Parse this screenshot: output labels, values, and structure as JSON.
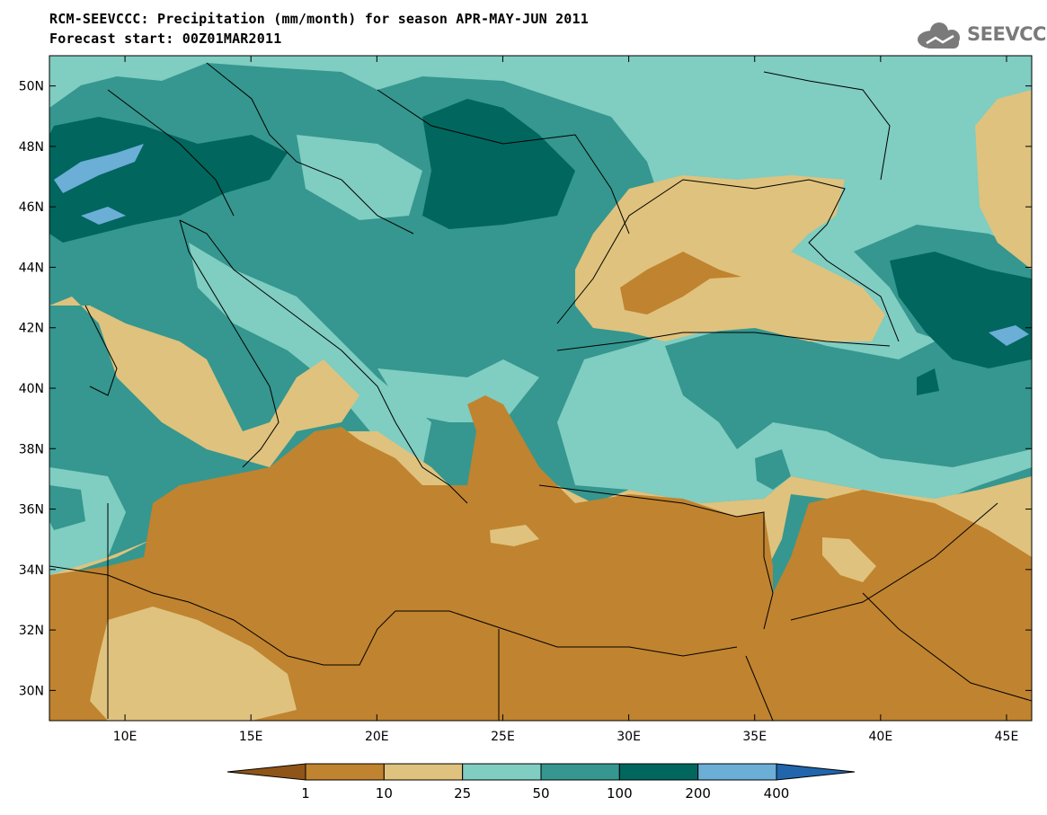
{
  "header": {
    "title_line1": "RCM-SEEVCCC: Precipitation (mm/month) for season APR-MAY-JUN 2011",
    "title_line2": "Forecast start: 00Z01MAR2011",
    "logo_text": "SEEVCCC"
  },
  "map": {
    "lon_range": [
      7,
      46
    ],
    "lat_range": [
      29,
      51
    ],
    "lon_ticks": [
      {
        "value": 10,
        "label": "10E"
      },
      {
        "value": 15,
        "label": "15E"
      },
      {
        "value": 20,
        "label": "20E"
      },
      {
        "value": 25,
        "label": "25E"
      },
      {
        "value": 30,
        "label": "30E"
      },
      {
        "value": 35,
        "label": "35E"
      },
      {
        "value": 40,
        "label": "40E"
      },
      {
        "value": 45,
        "label": "45E"
      }
    ],
    "lat_ticks": [
      {
        "value": 30,
        "label": "30N"
      },
      {
        "value": 32,
        "label": "32N"
      },
      {
        "value": 34,
        "label": "34N"
      },
      {
        "value": 36,
        "label": "36N"
      },
      {
        "value": 38,
        "label": "38N"
      },
      {
        "value": 40,
        "label": "40N"
      },
      {
        "value": 42,
        "label": "42N"
      },
      {
        "value": 44,
        "label": "44N"
      },
      {
        "value": 46,
        "label": "46N"
      },
      {
        "value": 48,
        "label": "48N"
      },
      {
        "value": 50,
        "label": "50N"
      }
    ]
  },
  "colorbar": {
    "bins": [
      {
        "color": "#8e5418"
      },
      {
        "color": "#c0832f"
      },
      {
        "color": "#dfc27d"
      },
      {
        "color": "#80cdc1"
      },
      {
        "color": "#35978f"
      },
      {
        "color": "#01665e"
      },
      {
        "color": "#6baed6"
      },
      {
        "color": "#2166ac"
      }
    ],
    "labels": [
      "1",
      "10",
      "25",
      "50",
      "100",
      "200",
      "400"
    ]
  }
}
